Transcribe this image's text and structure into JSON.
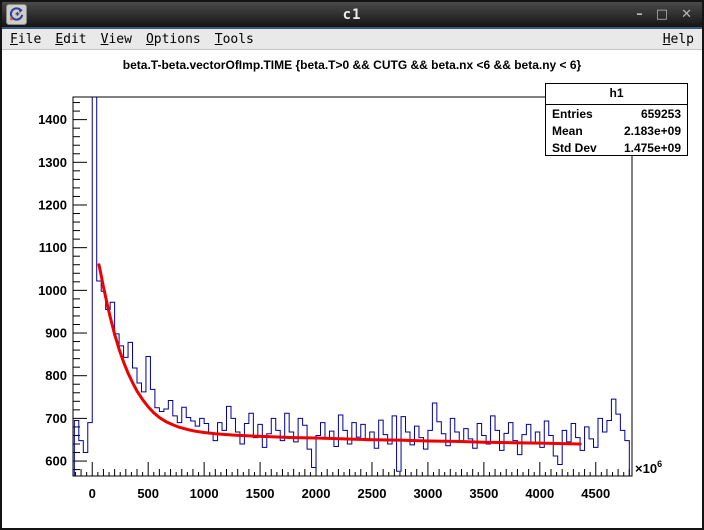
{
  "window": {
    "title": "c1",
    "controls": {
      "minimize": "–",
      "maximize": "□",
      "close": "✕"
    }
  },
  "menu": {
    "items": [
      "File",
      "Edit",
      "View",
      "Options",
      "Tools"
    ],
    "right_item": "Help"
  },
  "chart_data": {
    "type": "bar",
    "subtype": "root-histogram-with-fit",
    "title": "beta.T-beta.vectorOfImp.TIME {beta.T>0 && CUTG && beta.nx <6 && beta.ny < 6}",
    "x_axis": {
      "min": -172,
      "max": 4824,
      "major_ticks": [
        0,
        500,
        1000,
        1500,
        2000,
        2500,
        3000,
        3500,
        4000,
        4500
      ],
      "minor_step": 50,
      "exponent_label": "×10",
      "exponent": "6"
    },
    "y_axis": {
      "min": 565,
      "max": 1453,
      "major_ticks": [
        600,
        700,
        800,
        900,
        1000,
        1100,
        1200,
        1300,
        1400
      ],
      "minor_step": 20
    },
    "histogram": {
      "name": "h1",
      "color": "#000099",
      "bin_start": -160,
      "bin_width": 40,
      "values": [
        695,
        648,
        620,
        690,
        2000,
        1022,
        998,
        955,
        972,
        898,
        870,
        843,
        878,
        818,
        783,
        762,
        845,
        768,
        725,
        716,
        722,
        742,
        706,
        690,
        726,
        702,
        694,
        682,
        700,
        688,
        664,
        648,
        690,
        672,
        728,
        700,
        668,
        640,
        688,
        712,
        655,
        686,
        632,
        664,
        700,
        672,
        648,
        712,
        668,
        645,
        700,
        684,
        628,
        585,
        660,
        690,
        652,
        670,
        634,
        708,
        672,
        640,
        690,
        656,
        686,
        648,
        668,
        630,
        696,
        662,
        640,
        706,
        576,
        704,
        668,
        638,
        682,
        655,
        628,
        672,
        736,
        692,
        664,
        636,
        700,
        668,
        645,
        676,
        652,
        630,
        688,
        660,
        640,
        706,
        672,
        625,
        665,
        690,
        648,
        615,
        662,
        686,
        640,
        668,
        632,
        694,
        660,
        612,
        592,
        672,
        645,
        688,
        655,
        625,
        680,
        652,
        632,
        700,
        668,
        695,
        745,
        710,
        672,
        648
      ]
    },
    "fit": {
      "color": "#ee0000",
      "points": [
        [
          60,
          1060
        ],
        [
          80,
          1035
        ],
        [
          100,
          1008
        ],
        [
          130,
          972
        ],
        [
          160,
          938
        ],
        [
          200,
          897
        ],
        [
          240,
          862
        ],
        [
          280,
          832
        ],
        [
          320,
          806
        ],
        [
          360,
          784
        ],
        [
          400,
          764
        ],
        [
          450,
          744
        ],
        [
          500,
          727
        ],
        [
          550,
          713
        ],
        [
          600,
          702
        ],
        [
          660,
          692
        ],
        [
          720,
          685
        ],
        [
          780,
          679
        ],
        [
          850,
          674
        ],
        [
          920,
          670
        ],
        [
          1000,
          667
        ],
        [
          1100,
          664
        ],
        [
          1250,
          661
        ],
        [
          1400,
          659
        ],
        [
          1600,
          657
        ],
        [
          1800,
          655
        ],
        [
          2000,
          654
        ],
        [
          2250,
          652
        ],
        [
          2500,
          650
        ],
        [
          2750,
          649
        ],
        [
          3000,
          647
        ],
        [
          3250,
          646
        ],
        [
          3500,
          644
        ],
        [
          3750,
          643
        ],
        [
          4000,
          642
        ],
        [
          4200,
          641
        ],
        [
          4360,
          640
        ]
      ]
    },
    "stats": {
      "header": "h1",
      "rows": [
        [
          "Entries",
          "659253"
        ],
        [
          "Mean",
          "2.183e+09"
        ],
        [
          "Std Dev",
          "1.475e+09"
        ]
      ]
    }
  }
}
